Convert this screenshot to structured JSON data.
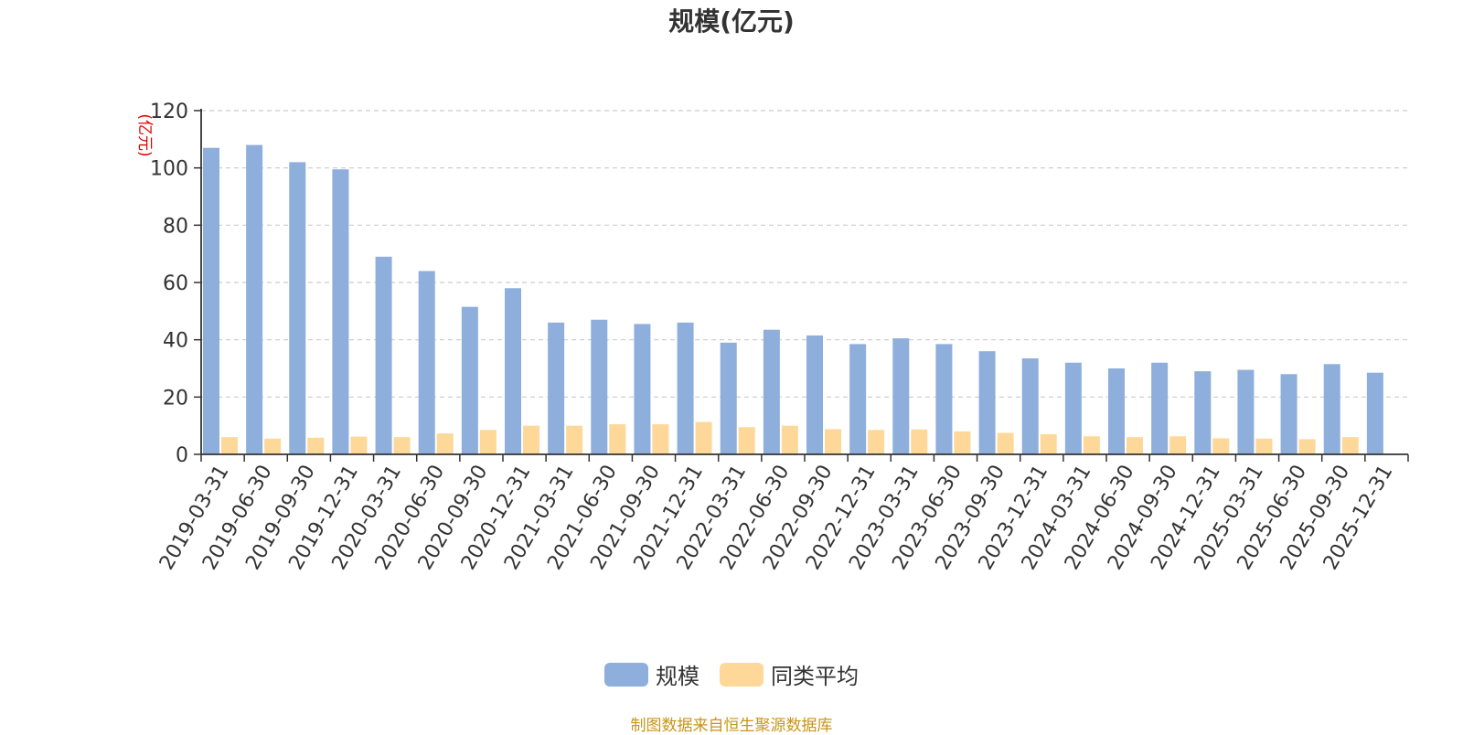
{
  "chart_data": {
    "type": "bar",
    "title": "规模(亿元)",
    "ylabel": "(亿元)",
    "xlabel": "",
    "ylim": [
      0,
      120
    ],
    "yticks": [
      0,
      20,
      40,
      60,
      80,
      100,
      120
    ],
    "grid": true,
    "legend_position": "bottom",
    "categories": [
      "2019-03-31",
      "2019-06-30",
      "2019-09-30",
      "2019-12-31",
      "2020-03-31",
      "2020-06-30",
      "2020-09-30",
      "2020-12-31",
      "2021-03-31",
      "2021-06-30",
      "2021-09-30",
      "2021-12-31",
      "2022-03-31",
      "2022-06-30",
      "2022-09-30",
      "2022-12-31",
      "2023-03-31",
      "2023-06-30",
      "2023-09-30",
      "2023-12-31",
      "2024-03-31",
      "2024-06-30",
      "2024-09-30",
      "2024-12-31",
      "2025-03-31",
      "2025-06-30",
      "2025-09-30",
      "2025-12-31"
    ],
    "series": [
      {
        "name": "规模",
        "color": "#8eaedb",
        "values": [
          107.0,
          108.0,
          102.0,
          99.5,
          69.0,
          64.0,
          51.5,
          58.0,
          46.0,
          47.0,
          45.5,
          46.0,
          39.0,
          43.5,
          41.5,
          38.5,
          40.5,
          38.5,
          36.0,
          33.5,
          32.0,
          30.0,
          32.0,
          29.0,
          29.5,
          28.0,
          31.5,
          28.5
        ]
      },
      {
        "name": "同类平均",
        "color": "#fdd898",
        "values": [
          6.0,
          5.5,
          5.8,
          6.2,
          6.0,
          7.3,
          8.5,
          10.0,
          10.0,
          10.5,
          10.5,
          11.3,
          9.5,
          10.0,
          8.8,
          8.5,
          8.7,
          8.0,
          7.5,
          7.0,
          6.3,
          6.0,
          6.3,
          5.6,
          5.5,
          5.3,
          6.0,
          null
        ]
      }
    ]
  },
  "source_note": "制图数据来自恒生聚源数据库",
  "axis_color": "#333333",
  "grid_color": "#cccccc",
  "ylabel_color": "#e00000"
}
